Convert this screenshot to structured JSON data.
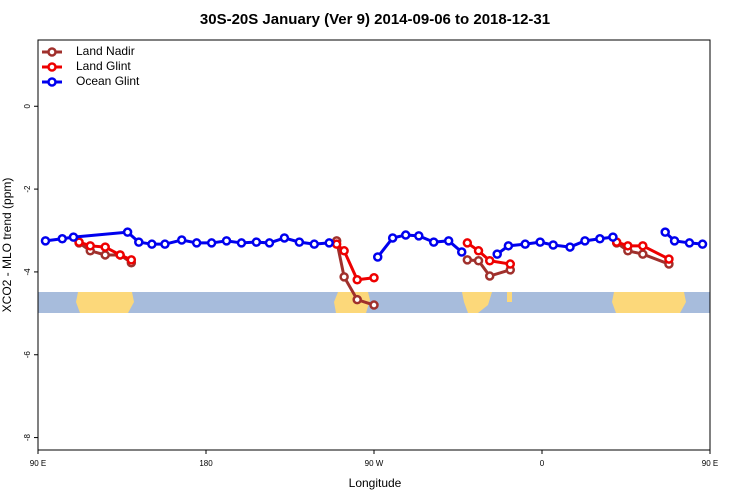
{
  "chart_data": {
    "type": "line",
    "title": "30S-20S January (Ver 9)   2014-09-06 to 2018-12-31",
    "x_label": "Longitude",
    "y_label": "XCO2 - MLO trend (ppm)",
    "xlim": [
      90,
      450
    ],
    "xticks": [
      {
        "value": 90,
        "label": "90 E"
      },
      {
        "value": 180,
        "label": "180"
      },
      {
        "value": 270,
        "label": "90 W"
      },
      {
        "value": 360,
        "label": "0"
      },
      {
        "value": 450,
        "label": "90 E"
      }
    ],
    "ylim": [
      -8.3,
      1.6
    ],
    "yticks": [
      0,
      -2,
      -4,
      -6,
      -8
    ],
    "grid": false,
    "legend": "top-left",
    "series": [
      {
        "name": "Land Nadir",
        "color": "#a0302c",
        "x": [
          112,
          118,
          126,
          134,
          140,
          null,
          250,
          254,
          261,
          270,
          null,
          320,
          326,
          332,
          343,
          null,
          400,
          406,
          414,
          428
        ],
        "values": [
          -3.3,
          -3.49,
          -3.59,
          -3.59,
          -3.78,
          null,
          -3.25,
          -4.12,
          -4.67,
          -4.8,
          null,
          -3.71,
          -3.73,
          -4.1,
          -3.95,
          null,
          -3.3,
          -3.49,
          -3.57,
          -3.81
        ]
      },
      {
        "name": "Land Glint",
        "color": "#ee0000",
        "x": [
          112,
          118,
          126,
          134,
          140,
          null,
          250,
          254,
          261,
          270,
          null,
          320,
          326,
          332,
          343,
          null,
          400,
          406,
          414,
          428
        ],
        "values": [
          -3.28,
          -3.37,
          -3.4,
          -3.59,
          -3.71,
          null,
          -3.33,
          -3.49,
          -4.19,
          -4.14,
          null,
          -3.3,
          -3.49,
          -3.73,
          -3.81,
          null,
          -3.28,
          -3.37,
          -3.37,
          -3.69
        ]
      },
      {
        "name": "Ocean Glint",
        "color": "#0000ee",
        "x": [
          94,
          103,
          109,
          138,
          144,
          151,
          158,
          167,
          175,
          183,
          191,
          199,
          207,
          214,
          222,
          230,
          238,
          246,
          null,
          272,
          280,
          287,
          294,
          302,
          310,
          317,
          null,
          336,
          342,
          351,
          359,
          366,
          375,
          383,
          391,
          398,
          null,
          426,
          431,
          439,
          446
        ],
        "values": [
          -3.25,
          -3.2,
          -3.16,
          -3.04,
          -3.28,
          -3.33,
          -3.33,
          -3.23,
          -3.3,
          -3.3,
          -3.25,
          -3.3,
          -3.28,
          -3.3,
          -3.18,
          -3.28,
          -3.33,
          -3.3,
          null,
          -3.64,
          -3.18,
          -3.11,
          -3.13,
          -3.28,
          -3.25,
          -3.52,
          null,
          -3.57,
          -3.37,
          -3.33,
          -3.28,
          -3.35,
          -3.4,
          -3.25,
          -3.2,
          -3.16,
          null,
          -3.04,
          -3.25,
          -3.3,
          -3.33
        ]
      }
    ]
  }
}
